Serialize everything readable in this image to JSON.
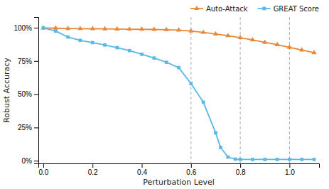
{
  "chart_data": {
    "type": "line",
    "x_label": "Perturbation Level",
    "y_label": "Robust Accuracy",
    "xlim": [
      -0.02,
      1.12
    ],
    "ylim": [
      -0.02,
      1.08
    ],
    "xticks": [
      {
        "value": 0.0,
        "label": "0.0"
      },
      0.2,
      0.4,
      0.6,
      0.8,
      {
        "value": 1.0,
        "label": "1.0"
      }
    ],
    "yticks": [
      {
        "value": 0.0,
        "label": "0%"
      },
      {
        "value": 0.25,
        "label": "25%"
      },
      {
        "value": 0.5,
        "label": "50%"
      },
      {
        "value": 0.75,
        "label": "75%"
      },
      {
        "value": 1.0,
        "label": "100%"
      }
    ],
    "vlines": [
      0.6,
      0.8,
      1.0
    ],
    "grid": false,
    "legend": "upper right",
    "series": [
      {
        "name": "Auto-Attack",
        "color": "#E8883A",
        "marker": "triangle",
        "x": [
          0.0,
          0.05,
          0.1,
          0.15,
          0.2,
          0.25,
          0.3,
          0.35,
          0.4,
          0.45,
          0.5,
          0.55,
          0.6,
          0.65,
          0.7,
          0.75,
          0.8,
          0.85,
          0.9,
          0.95,
          1.0,
          1.05,
          1.1
        ],
        "values": [
          0.998,
          0.996,
          0.994,
          0.993,
          0.992,
          0.991,
          0.99,
          0.989,
          0.988,
          0.987,
          0.985,
          0.982,
          0.975,
          0.965,
          0.952,
          0.94,
          0.925,
          0.908,
          0.89,
          0.872,
          0.852,
          0.832,
          0.812
        ]
      },
      {
        "name": "GREAT Score",
        "color": "#5BB8E8",
        "marker": "square",
        "x": [
          0.0,
          0.05,
          0.1,
          0.15,
          0.2,
          0.25,
          0.3,
          0.35,
          0.4,
          0.45,
          0.5,
          0.55,
          0.6,
          0.65,
          0.7,
          0.72,
          0.75,
          0.78,
          0.8,
          0.85,
          0.9,
          0.95,
          1.0,
          1.05,
          1.1
        ],
        "values": [
          0.998,
          0.975,
          0.93,
          0.905,
          0.888,
          0.87,
          0.85,
          0.828,
          0.8,
          0.772,
          0.74,
          0.7,
          0.58,
          0.44,
          0.21,
          0.1,
          0.028,
          0.012,
          0.01,
          0.01,
          0.01,
          0.01,
          0.01,
          0.01,
          0.01
        ]
      }
    ]
  }
}
